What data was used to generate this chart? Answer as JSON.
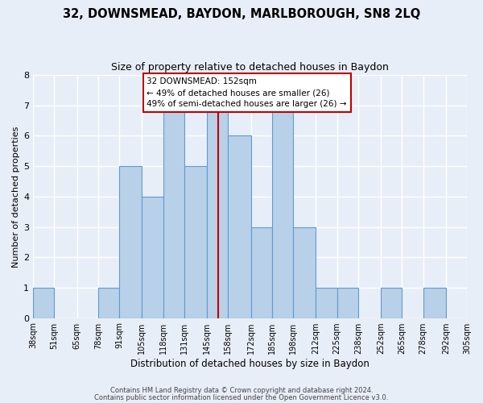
{
  "title": "32, DOWNSMEAD, BAYDON, MARLBOROUGH, SN8 2LQ",
  "subtitle": "Size of property relative to detached houses in Baydon",
  "xlabel": "Distribution of detached houses by size in Baydon",
  "ylabel": "Number of detached properties",
  "bin_labels": [
    "38sqm",
    "51sqm",
    "65sqm",
    "78sqm",
    "91sqm",
    "105sqm",
    "118sqm",
    "131sqm",
    "145sqm",
    "158sqm",
    "172sqm",
    "185sqm",
    "198sqm",
    "212sqm",
    "225sqm",
    "238sqm",
    "252sqm",
    "265sqm",
    "278sqm",
    "292sqm",
    "305sqm"
  ],
  "bin_edges": [
    38,
    51,
    65,
    78,
    91,
    105,
    118,
    131,
    145,
    158,
    172,
    185,
    198,
    212,
    225,
    238,
    252,
    265,
    278,
    292,
    305
  ],
  "counts": [
    1,
    0,
    0,
    1,
    5,
    4,
    7,
    5,
    7,
    6,
    3,
    7,
    3,
    1,
    1,
    0,
    1,
    0,
    1,
    0,
    0
  ],
  "bar_color": "#b8d0e8",
  "bar_edge_color": "#5b9bd5",
  "property_size": 152,
  "vline_color": "#c00000",
  "annotation_text": "32 DOWNSMEAD: 152sqm\n← 49% of detached houses are smaller (26)\n49% of semi-detached houses are larger (26) →",
  "annotation_box_facecolor": "#ffffff",
  "annotation_box_edgecolor": "#c00000",
  "ylim": [
    0,
    8
  ],
  "yticks": [
    0,
    1,
    2,
    3,
    4,
    5,
    6,
    7,
    8
  ],
  "background_color": "#e8eef8",
  "grid_color": "#ffffff",
  "footer_line1": "Contains HM Land Registry data © Crown copyright and database right 2024.",
  "footer_line2": "Contains public sector information licensed under the Open Government Licence v3.0."
}
